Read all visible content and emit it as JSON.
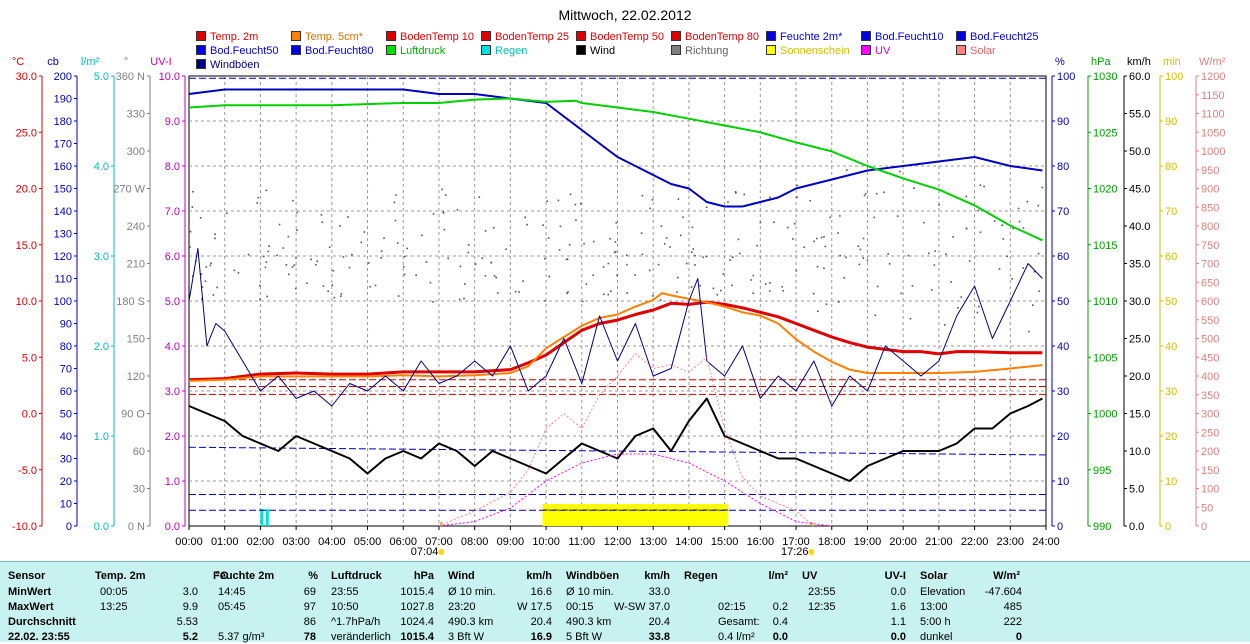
{
  "title": "Mittwoch, 22.02.2012",
  "legend": [
    {
      "label": "Temp. 2m",
      "color": "#e00000"
    },
    {
      "label": "Temp. 5cm*",
      "color": "#ff8000"
    },
    {
      "label": "BodenTemp 10",
      "color": "#e00000"
    },
    {
      "label": "BodenTemp 25",
      "color": "#e00000"
    },
    {
      "label": "BodenTemp 50",
      "color": "#e00000"
    },
    {
      "label": "BodenTemp 80",
      "color": "#e00000"
    },
    {
      "label": "Feuchte 2m*",
      "color": "#0000e0"
    },
    {
      "label": "Bod.Feucht10",
      "color": "#0000e0"
    },
    {
      "label": "Bod.Feucht25",
      "color": "#0000e0"
    },
    {
      "label": "Bod.Feucht50",
      "color": "#0000e0"
    },
    {
      "label": "Bod.Feucht80",
      "color": "#0000e0"
    },
    {
      "label": "Luftdruck",
      "color": "#00e000"
    },
    {
      "label": "Regen",
      "color": "#00e0e0"
    },
    {
      "label": "Wind",
      "color": "#000000"
    },
    {
      "label": "Richtung",
      "color": "#808080"
    },
    {
      "label": "Sonnenschein",
      "color": "#ffff00"
    },
    {
      "label": "UV",
      "color": "#ff00ff"
    },
    {
      "label": "Solar",
      "color": "#ff8080"
    },
    {
      "label": "Windböen",
      "color": "#000080"
    }
  ],
  "axes_left": [
    {
      "unit": "°C",
      "color": "#e00000",
      "ticks": [
        "30.0",
        "25.0",
        "20.0",
        "15.0",
        "10.0",
        "5.0",
        "0.0",
        "-5.0",
        "-10.0"
      ]
    },
    {
      "unit": "cb",
      "color": "#0000c0",
      "ticks": [
        "200",
        "190",
        "180",
        "170",
        "160",
        "150",
        "140",
        "130",
        "120",
        "110",
        "100",
        "90",
        "80",
        "70",
        "60",
        "50",
        "40",
        "30",
        "20",
        "10",
        "0"
      ]
    },
    {
      "unit": "l/m²",
      "color": "#00c0c0",
      "ticks": [
        "5.0",
        "4.0",
        "3.0",
        "2.0",
        "1.0",
        "0.0"
      ]
    },
    {
      "unit": "°",
      "color": "#808080",
      "ticks": [
        "360 N",
        "330",
        "300",
        "270 W",
        "240",
        "210",
        "180 S",
        "150",
        "120",
        "90 O",
        "60",
        "30",
        "0 N"
      ]
    },
    {
      "unit": "UV-I",
      "color": "#c000c0",
      "ticks": [
        "10.0",
        "9.0",
        "8.0",
        "7.0",
        "6.0",
        "5.0",
        "4.0",
        "3.0",
        "2.0",
        "1.0",
        "0.0"
      ]
    }
  ],
  "axes_right": [
    {
      "unit": "%",
      "color": "#0000c0",
      "ticks": [
        "100",
        "90",
        "80",
        "70",
        "60",
        "50",
        "40",
        "30",
        "20",
        "10",
        "0"
      ]
    },
    {
      "unit": "hPa",
      "color": "#00a000",
      "ticks": [
        "1030",
        "1025",
        "1020",
        "1015",
        "1010",
        "1005",
        "1000",
        "995",
        "990"
      ]
    },
    {
      "unit": "km/h",
      "color": "#000000",
      "ticks": [
        "60.0",
        "55.0",
        "50.0",
        "45.0",
        "40.0",
        "35.0",
        "30.0",
        "25.0",
        "20.0",
        "15.0",
        "10.0",
        "5.0",
        "0.0"
      ]
    },
    {
      "unit": "min",
      "color": "#d0c000",
      "ticks": [
        "100",
        "90",
        "80",
        "70",
        "60",
        "50",
        "40",
        "30",
        "20",
        "10",
        "0"
      ]
    },
    {
      "unit": "W/m²",
      "color": "#e08080",
      "ticks": [
        "1200",
        "1150",
        "1100",
        "1050",
        "1000",
        "950",
        "900",
        "850",
        "800",
        "750",
        "700",
        "650",
        "600",
        "550",
        "500",
        "450",
        "400",
        "350",
        "300",
        "250",
        "200",
        "150",
        "100",
        "50",
        "0"
      ]
    }
  ],
  "time_labels": [
    "00:00",
    "01:00",
    "02:00",
    "03:00",
    "04:00",
    "05:00",
    "06:00",
    "07:00",
    "08:00",
    "09:00",
    "10:00",
    "11:00",
    "12:00",
    "13:00",
    "14:00",
    "15:00",
    "16:00",
    "17:00",
    "18:00",
    "19:00",
    "20:00",
    "21:00",
    "22:00",
    "23:00",
    "24:00"
  ],
  "sunrise": "07:04",
  "sunset": "17:26",
  "chart_data": {
    "type": "line",
    "title": "Mittwoch, 22.02.2012",
    "x_unit": "hour",
    "xlim": [
      0,
      24
    ],
    "series": [
      {
        "name": "Temp. 2m",
        "axis": "°C",
        "color": "#e00000",
        "x": [
          0,
          1,
          2,
          3,
          4,
          5,
          6,
          7,
          8,
          9,
          9.5,
          10,
          10.5,
          11,
          11.5,
          12,
          12.5,
          13,
          13.5,
          14,
          14.5,
          15,
          15.5,
          16,
          16.5,
          17,
          17.5,
          18,
          18.5,
          19,
          19.5,
          20,
          20.5,
          21,
          21.5,
          22,
          23,
          23.9
        ],
        "y": [
          3.0,
          3.1,
          3.5,
          3.6,
          3.5,
          3.5,
          3.7,
          3.7,
          3.7,
          3.9,
          4.5,
          5.2,
          6.3,
          7.4,
          8.0,
          8.3,
          8.8,
          9.2,
          9.8,
          9.7,
          9.9,
          9.7,
          9.4,
          9.0,
          8.6,
          8.0,
          7.4,
          6.8,
          6.3,
          5.9,
          5.7,
          5.5,
          5.5,
          5.3,
          5.5,
          5.5,
          5.4,
          5.4
        ]
      },
      {
        "name": "Temp. 5cm*",
        "axis": "°C",
        "color": "#ff8000",
        "x": [
          0,
          1,
          2,
          3,
          4,
          5,
          6,
          7,
          8,
          9,
          9.5,
          10,
          10.5,
          11,
          11.5,
          12,
          12.5,
          13,
          13.25,
          13.5,
          14,
          14.5,
          15,
          15.5,
          16,
          16.5,
          17,
          17.5,
          18,
          18.5,
          19,
          20,
          21,
          22,
          23,
          23.9
        ],
        "y": [
          2.9,
          3.0,
          3.3,
          3.3,
          3.3,
          3.3,
          3.4,
          3.3,
          3.4,
          3.6,
          4.2,
          5.8,
          6.8,
          7.8,
          8.5,
          8.8,
          9.5,
          10.1,
          10.7,
          10.5,
          10.2,
          9.9,
          9.5,
          9.0,
          8.7,
          8.0,
          6.6,
          5.5,
          4.6,
          3.9,
          3.6,
          3.6,
          3.6,
          3.7,
          4.0,
          4.3
        ]
      },
      {
        "name": "Feuchte 2m*",
        "axis": "%",
        "color": "#0000c0",
        "x": [
          0,
          1,
          2,
          3,
          4,
          5,
          6,
          7,
          8,
          9,
          10,
          10.5,
          11,
          11.5,
          12,
          12.5,
          13,
          13.5,
          14,
          14.5,
          15,
          15.5,
          16,
          16.5,
          17,
          17.5,
          18,
          18.5,
          19,
          20,
          21,
          22,
          23,
          23.9
        ],
        "y": [
          96,
          97,
          97,
          97,
          97,
          97,
          97,
          96,
          96,
          95,
          94,
          91,
          88,
          85,
          82,
          80,
          78,
          76,
          75,
          72,
          71,
          71,
          72,
          73,
          75,
          76,
          77,
          78,
          79,
          80,
          81,
          82,
          80,
          79
        ]
      },
      {
        "name": "Luftdruck",
        "axis": "hPa",
        "color": "#00d000",
        "x": [
          0,
          1,
          2,
          3,
          4,
          5,
          6,
          7,
          8,
          9,
          10,
          10.83,
          11,
          12,
          13,
          14,
          15,
          16,
          17,
          18,
          19,
          20,
          21,
          22,
          23,
          23.9
        ],
        "y": [
          1027.2,
          1027.4,
          1027.4,
          1027.4,
          1027.4,
          1027.5,
          1027.6,
          1027.6,
          1027.9,
          1028.0,
          1027.7,
          1027.8,
          1027.6,
          1027.2,
          1026.8,
          1026.2,
          1025.6,
          1025.0,
          1024.1,
          1023.3,
          1022.0,
          1020.9,
          1019.9,
          1018.5,
          1016.7,
          1015.4
        ]
      },
      {
        "name": "Wind",
        "axis": "km/h",
        "color": "#000000",
        "x": [
          0,
          0.5,
          1,
          1.5,
          2,
          2.5,
          3,
          3.5,
          4,
          4.5,
          5,
          5.5,
          6,
          6.5,
          7,
          7.5,
          8,
          8.5,
          9,
          9.5,
          10,
          10.5,
          11,
          11.5,
          12,
          12.5,
          13,
          13.5,
          14,
          14.5,
          15,
          15.5,
          16,
          16.5,
          17,
          17.5,
          18,
          18.5,
          19,
          19.5,
          20,
          20.5,
          21,
          21.5,
          22,
          22.5,
          23,
          23.5,
          23.9
        ],
        "y": [
          16,
          15,
          14,
          12,
          11,
          10,
          12,
          11,
          10,
          9,
          7,
          9,
          10,
          9,
          11,
          10,
          8,
          10,
          9,
          8,
          7,
          9,
          11,
          10,
          9,
          12,
          13,
          10,
          14,
          17,
          12,
          11,
          10,
          9,
          9,
          8,
          7,
          6,
          8,
          9,
          10,
          10,
          10,
          11,
          13,
          13,
          15,
          16,
          17
        ]
      },
      {
        "name": "Windböen",
        "axis": "km/h",
        "color": "#000080",
        "x": [
          0,
          0.25,
          0.5,
          0.75,
          1,
          1.5,
          2,
          2.5,
          3,
          3.5,
          4,
          4.5,
          5,
          5.5,
          6,
          6.5,
          7,
          7.5,
          8,
          8.5,
          9,
          9.5,
          10,
          10.5,
          11,
          11.5,
          12,
          12.5,
          13,
          13.5,
          14,
          14.25,
          14.5,
          15,
          15.5,
          16,
          16.5,
          17,
          17.5,
          18,
          18.5,
          19,
          19.5,
          20,
          20.5,
          21,
          21.5,
          22,
          22.5,
          23,
          23.5,
          23.9
        ],
        "y": [
          30,
          37,
          24,
          27,
          26,
          22,
          18,
          20,
          17,
          18,
          16,
          19,
          18,
          20,
          18,
          22,
          19,
          20,
          22,
          20,
          24,
          18,
          20,
          25,
          19,
          28,
          22,
          27,
          20,
          21,
          30,
          33,
          22,
          20,
          24,
          17,
          20,
          18,
          22,
          16,
          20,
          18,
          24,
          22,
          20,
          22,
          28,
          32,
          25,
          30,
          35,
          33
        ]
      },
      {
        "name": "Solar",
        "axis": "W/m²",
        "color": "#ff8080",
        "x": [
          7,
          8,
          9,
          9.5,
          10,
          10.5,
          11,
          11.5,
          12,
          12.5,
          13,
          13.5,
          14,
          14.5,
          15,
          15.5,
          16,
          17,
          17.5
        ],
        "y": [
          0,
          40,
          90,
          150,
          260,
          300,
          260,
          350,
          400,
          460,
          420,
          430,
          410,
          450,
          260,
          130,
          80,
          40,
          0
        ]
      },
      {
        "name": "UV",
        "axis": "UV-I",
        "color": "#ff00ff",
        "x": [
          7,
          8,
          9,
          10,
          11,
          12,
          13,
          14,
          15,
          16,
          17,
          18
        ],
        "y": [
          0,
          0.1,
          0.4,
          1.0,
          1.4,
          1.6,
          1.6,
          1.4,
          1.0,
          0.5,
          0.1,
          0
        ]
      },
      {
        "name": "Sonnenschein",
        "axis": "min",
        "color": "#ffff00",
        "x": [
          9.9,
          15.1
        ],
        "y": [
          5,
          5
        ]
      }
    ]
  },
  "stats": {
    "headers": [
      "Sensor",
      "Temp. 2m",
      "°C",
      "Feuchte 2m",
      "%",
      "Luftdruck",
      "hPa",
      "Wind",
      "km/h",
      "Windböen",
      "km/h",
      "Regen",
      "l/m²",
      "UV",
      "UV-I",
      "Solar",
      "W/m²"
    ],
    "rows": [
      {
        "label": "MinWert",
        "c": [
          "00:05",
          "3.0",
          "14:45",
          "69",
          "23:55",
          "1015.4",
          "Ø 10 min.",
          "16.6",
          "Ø 10 min.",
          "33.0",
          "",
          "",
          "23:55",
          "0.0",
          "Elevation",
          "-47.604"
        ]
      },
      {
        "label": "MaxWert",
        "c": [
          "13:25",
          "9.9",
          "05:45",
          "97",
          "10:50",
          "1027.8",
          "23:20",
          "W 17.5",
          "00:15",
          "W-SW 37.0",
          "02:15",
          "0.2",
          "12:35",
          "1.6",
          "13:00",
          "485"
        ]
      },
      {
        "label": "Durchschnitt",
        "c": [
          "",
          "5.53",
          "",
          "86",
          "^1.7hPa/h",
          "1024.4",
          "490.3 km",
          "20.4",
          "490.3 km",
          "20.4",
          "Gesamt:",
          "0.4",
          "",
          "1.1",
          "5:00 h",
          "222"
        ]
      },
      {
        "label": "22.02. 23:55",
        "c": [
          "",
          "5.2",
          "5.37 g/m³",
          "78",
          "veränderlich",
          "1015.4",
          "3 Bft W",
          "16.9",
          "5 Bft W",
          "33.8",
          "0.4 l/m²",
          "0.0",
          "",
          "0.0",
          "dunkel",
          "0"
        ]
      }
    ]
  }
}
